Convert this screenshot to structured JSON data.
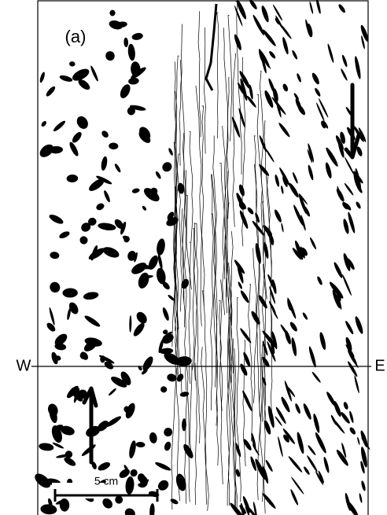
{
  "panel_label": "(a)",
  "west_label": "W",
  "east_label": "E",
  "scale_bar_label": "5 cm"
}
